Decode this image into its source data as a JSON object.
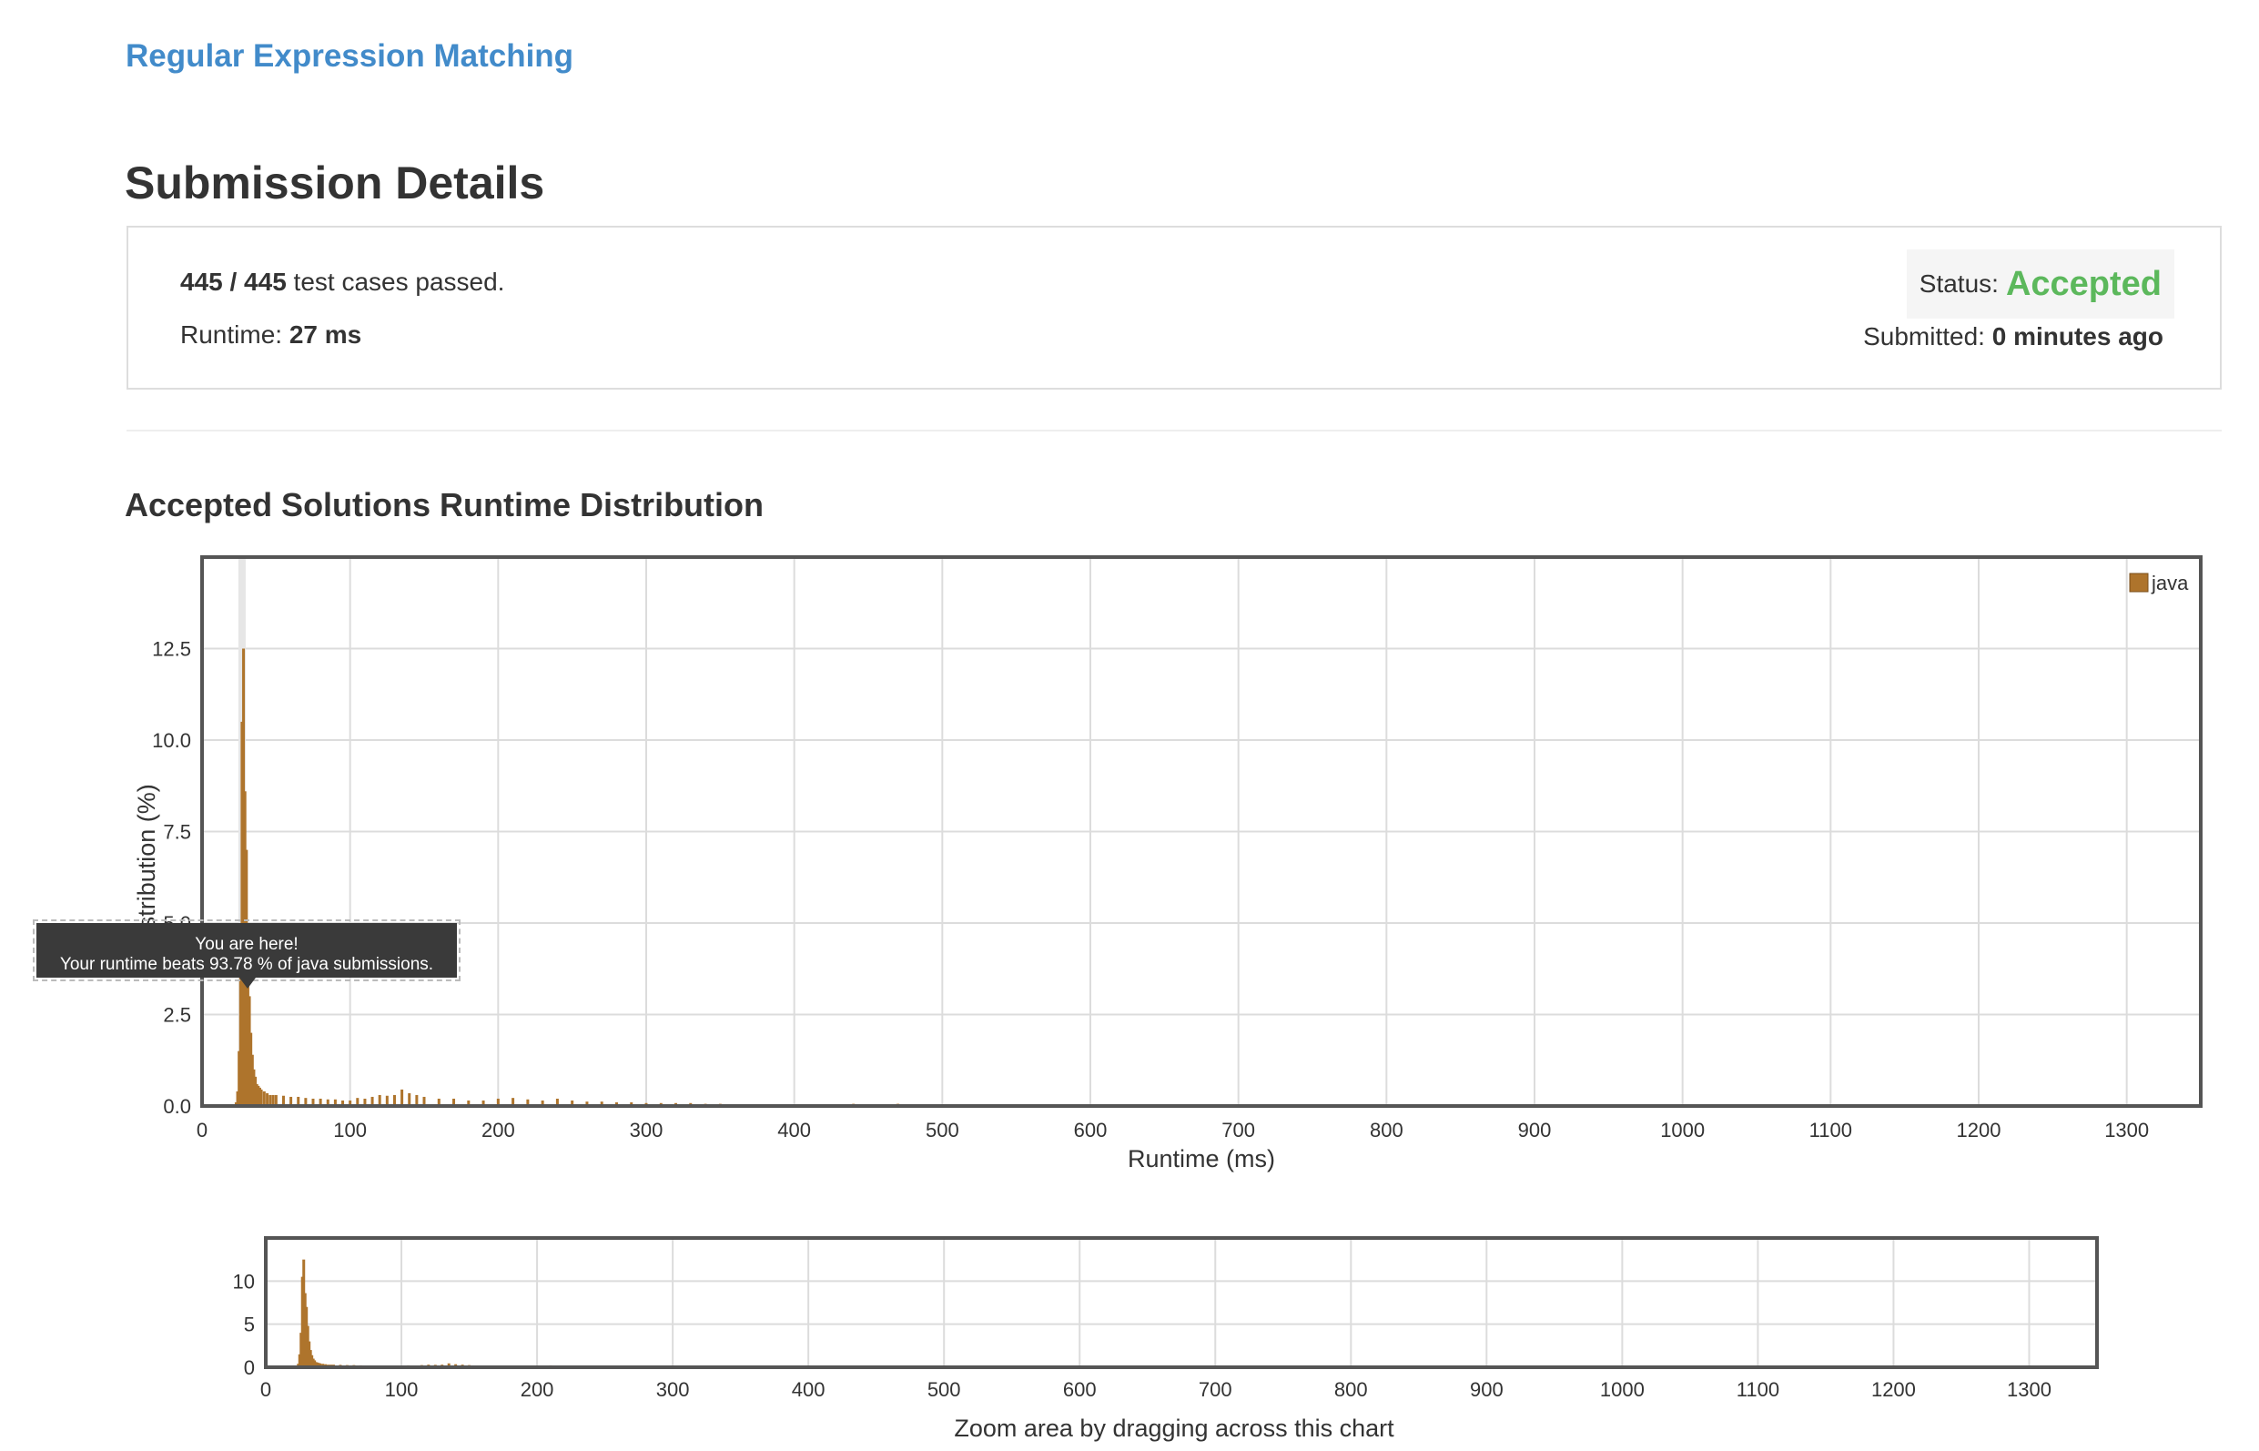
{
  "problem": {
    "title": "Regular Expression Matching"
  },
  "page": {
    "title": "Submission Details"
  },
  "submission": {
    "passed": "445 / 445",
    "passed_suffix": " test cases passed.",
    "runtime_label": "Runtime: ",
    "runtime_value": "27 ms",
    "status_label": "Status: ",
    "status_value": "Accepted",
    "submitted_label": "Submitted: ",
    "submitted_value": "0 minutes ago"
  },
  "distribution": {
    "title": "Accepted Solutions Runtime Distribution"
  },
  "tooltip": {
    "line1": "You are here!",
    "line2": "Your runtime beats 93.78 % of java submissions."
  },
  "colors": {
    "bar": "#ae742c",
    "status_accepted": "#5cb85c",
    "link": "#428bca"
  },
  "chart_data": [
    {
      "type": "bar",
      "ylabel": "Distribution (%)",
      "xlabel": "Runtime (ms)",
      "xlim": [
        0,
        1350
      ],
      "ylim": [
        0,
        15
      ],
      "xticks": [
        "0",
        "100",
        "200",
        "300",
        "400",
        "500",
        "600",
        "700",
        "800",
        "900",
        "1000",
        "1100",
        "1200",
        "1300"
      ],
      "yticks": [
        "0.0",
        "2.5",
        "5.0",
        "7.5",
        "10.0",
        "12.5"
      ],
      "grid": true,
      "legend_position": "top-right",
      "series": [
        {
          "name": "java",
          "x": [
            23,
            24,
            25,
            26,
            27,
            28,
            29,
            30,
            31,
            32,
            33,
            34,
            35,
            36,
            37,
            38,
            39,
            40,
            42,
            44,
            46,
            48,
            50,
            55,
            60,
            65,
            70,
            75,
            80,
            85,
            90,
            95,
            100,
            105,
            110,
            115,
            120,
            125,
            130,
            135,
            140,
            145,
            150,
            160,
            170,
            180,
            190,
            200,
            210,
            220,
            230,
            240,
            250,
            260,
            270,
            280,
            290,
            300,
            310,
            320,
            330,
            340,
            350,
            360,
            375,
            420,
            430,
            440,
            450,
            460,
            470,
            500,
            510,
            530,
            550,
            560,
            575,
            600,
            610,
            645,
            680,
            700,
            720,
            770,
            780,
            800,
            845,
            850,
            860,
            890,
            905,
            915,
            930,
            945,
            960,
            975,
            1000,
            1020,
            1030,
            1055,
            1060,
            1165,
            1200,
            1215,
            1310,
            1350
          ],
          "y": [
            0.1,
            0.4,
            1.5,
            4.0,
            10.5,
            12.5,
            8.6,
            7.0,
            4.8,
            3.0,
            2.0,
            1.4,
            1.0,
            0.8,
            0.6,
            0.55,
            0.5,
            0.45,
            0.4,
            0.35,
            0.3,
            0.3,
            0.3,
            0.28,
            0.25,
            0.25,
            0.22,
            0.2,
            0.2,
            0.18,
            0.18,
            0.15,
            0.15,
            0.22,
            0.2,
            0.25,
            0.3,
            0.28,
            0.3,
            0.45,
            0.35,
            0.3,
            0.25,
            0.2,
            0.2,
            0.15,
            0.15,
            0.2,
            0.22,
            0.18,
            0.15,
            0.2,
            0.15,
            0.12,
            0.12,
            0.1,
            0.1,
            0.08,
            0.08,
            0.08,
            0.08,
            0.06,
            0.06,
            0.05,
            0.05,
            0.05,
            0.05,
            0.06,
            0.05,
            0.05,
            0.06,
            0.05,
            0.05,
            0.05,
            0.05,
            0.04,
            0.05,
            0.05,
            0.05,
            0.05,
            0.05,
            0.05,
            0.05,
            0.05,
            0.05,
            0.05,
            0.05,
            0.05,
            0.05,
            0.05,
            0.05,
            0.05,
            0.05,
            0.05,
            0.05,
            0.05,
            0.05,
            0.05,
            0.05,
            0.05,
            0.05,
            0.05,
            0.05,
            0.05,
            0.05,
            0.1
          ]
        }
      ],
      "highlight_x": 27,
      "legend": [
        "java"
      ]
    },
    {
      "type": "bar",
      "xlabel": "Zoom area by dragging across this chart",
      "xlim": [
        0,
        1350
      ],
      "ylim": [
        0,
        15
      ],
      "xticks": [
        "0",
        "100",
        "200",
        "300",
        "400",
        "500",
        "600",
        "700",
        "800",
        "900",
        "1000",
        "1100",
        "1200",
        "1300"
      ],
      "yticks": [
        "0",
        "5",
        "10"
      ],
      "grid": true
    }
  ]
}
